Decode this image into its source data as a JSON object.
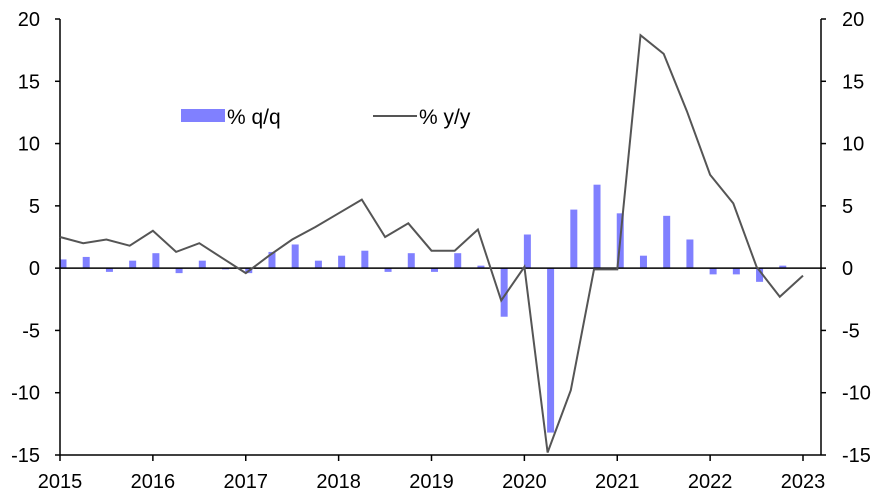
{
  "chart_data": {
    "type": "bar+line",
    "title": "",
    "x_years": [
      "2015",
      "2016",
      "2017",
      "2018",
      "2019",
      "2020",
      "2021",
      "2022",
      "2023"
    ],
    "ylim_left": [
      -15,
      20
    ],
    "ylim_right": [
      -15,
      20
    ],
    "yticks": [
      -15,
      -10,
      -5,
      0,
      5,
      10,
      15,
      20
    ],
    "grid": false,
    "legend_position": "top-left inside plot",
    "colors": {
      "bar": "#8080ff",
      "line": "#555555",
      "axis": "#000000"
    },
    "series": [
      {
        "name": "% q/q",
        "kind": "bar",
        "axis": "left",
        "x": [
          2015.0,
          2015.25,
          2015.5,
          2015.75,
          2016.0,
          2016.25,
          2016.5,
          2016.75,
          2017.0,
          2017.25,
          2017.5,
          2017.75,
          2018.0,
          2018.25,
          2018.5,
          2018.75,
          2019.0,
          2019.25,
          2019.5,
          2019.75,
          2020.0,
          2020.25,
          2020.5,
          2020.75,
          2021.0,
          2021.25,
          2021.5,
          2021.75,
          2022.0,
          2022.25,
          2022.5,
          2022.75
        ],
        "values": [
          0.7,
          0.9,
          -0.3,
          0.6,
          1.2,
          -0.4,
          0.6,
          -0.1,
          -0.4,
          1.3,
          1.9,
          0.6,
          1.0,
          1.4,
          -0.3,
          1.2,
          -0.3,
          1.2,
          0.2,
          -3.9,
          2.7,
          -13.2,
          4.7,
          6.7,
          4.4,
          1.0,
          4.2,
          2.3,
          -0.5,
          -0.5,
          -1.1,
          0.2
        ]
      },
      {
        "name": "% y/y",
        "kind": "line",
        "axis": "right",
        "x": [
          2015.0,
          2015.25,
          2015.5,
          2015.75,
          2016.0,
          2016.25,
          2016.5,
          2016.75,
          2017.0,
          2017.25,
          2017.5,
          2017.75,
          2018.0,
          2018.25,
          2018.5,
          2018.75,
          2019.0,
          2019.25,
          2019.5,
          2019.75,
          2020.0,
          2020.25,
          2020.5,
          2020.75,
          2021.0,
          2021.25,
          2021.5,
          2021.75,
          2022.0,
          2022.25,
          2022.5,
          2022.75,
          2023.0
        ],
        "values": [
          2.5,
          2.0,
          2.3,
          1.8,
          3.0,
          1.3,
          2.0,
          0.8,
          -0.4,
          1.0,
          2.3,
          3.3,
          4.4,
          5.5,
          2.5,
          3.6,
          1.4,
          1.4,
          3.1,
          -2.6,
          0.1,
          -14.8,
          -9.8,
          -0.1,
          -0.1,
          18.7,
          17.2,
          12.6,
          7.5,
          5.2,
          0.1,
          -2.3,
          -0.6
        ]
      }
    ]
  }
}
